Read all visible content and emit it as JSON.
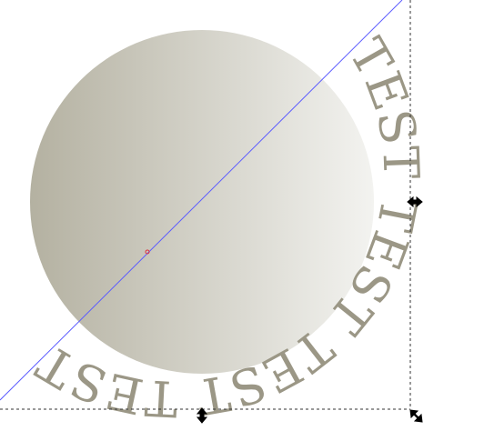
{
  "canvas": {
    "text_on_path": "TEST TEST TEST TEST",
    "colors": {
      "background": "#ffffff",
      "gradient_start": "#b4b1a1",
      "gradient_end": "#f3f3f0",
      "text_fill": "#9b9786",
      "guide_line": "#5b5bff",
      "bbox_dash": "#333333",
      "handle": "#000000",
      "center_marker": "#e0303a"
    },
    "icons": {
      "right_handle": "scale-horizontal-arrow-icon",
      "bottom_handle": "scale-vertical-arrow-icon",
      "corner_handle": "scale-diagonal-arrow-icon",
      "center": "rotation-center-icon"
    }
  }
}
